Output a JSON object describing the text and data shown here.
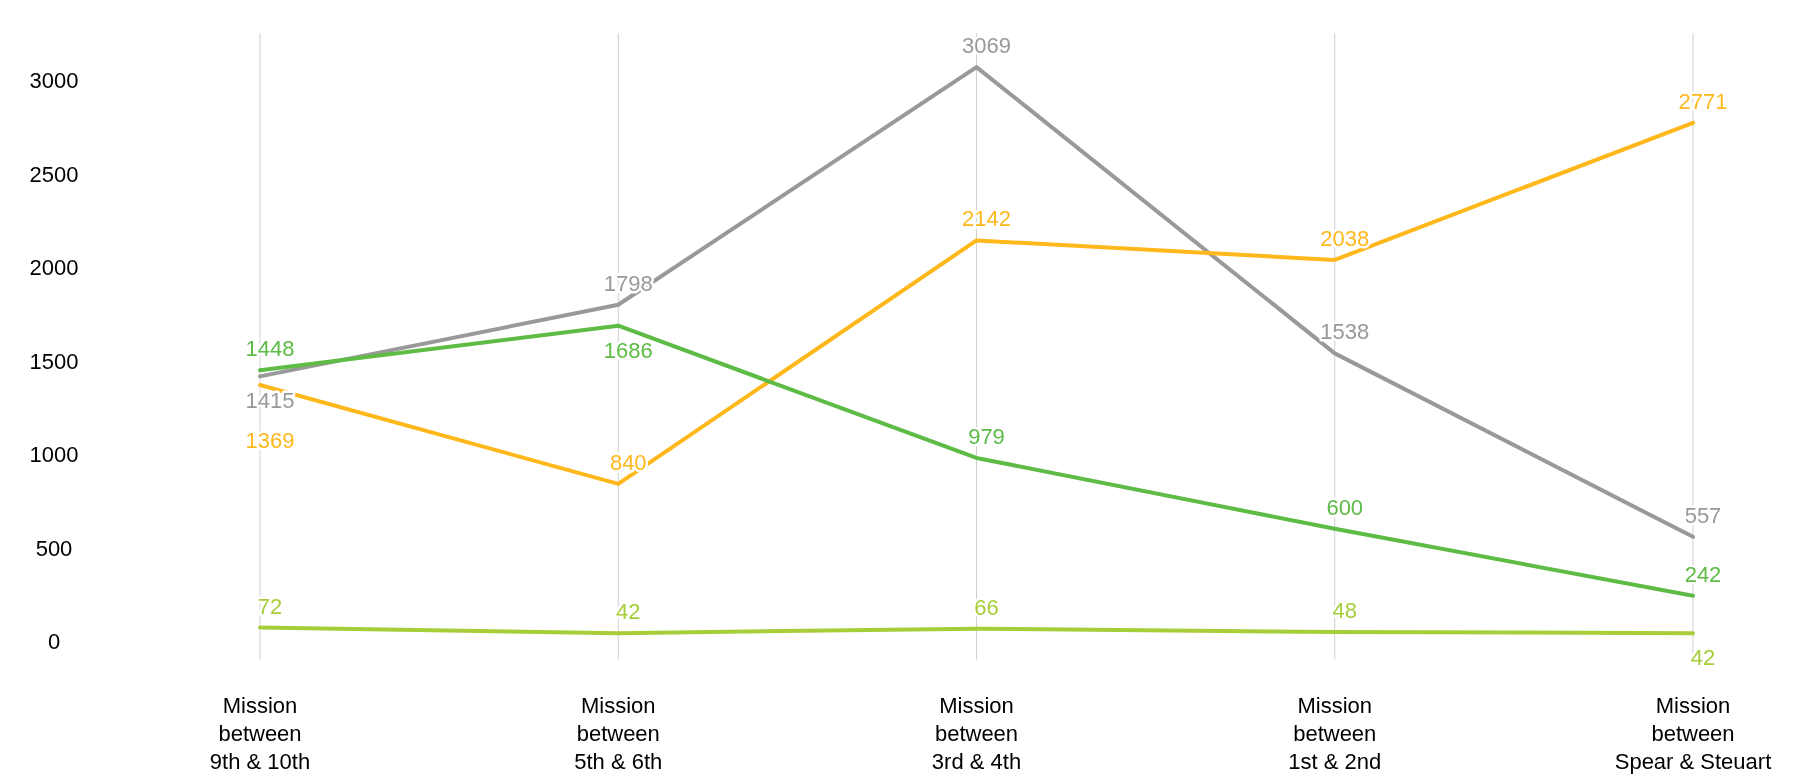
{
  "chart_data": {
    "type": "line",
    "categories": [
      "Mission between 9th & 10th",
      "Mission between 5th & 6th",
      "Mission between 3rd & 4th",
      "Mission between 1st & 2nd",
      "Mission between Spear & Steuart"
    ],
    "series": [
      {
        "color": "#999999",
        "values": [
          1415,
          1798,
          3069,
          1538,
          557
        ]
      },
      {
        "color": "#ffb81c",
        "values": [
          1369,
          840,
          2142,
          2038,
          2771
        ]
      },
      {
        "color": "#5dbb46",
        "values": [
          1448,
          1686,
          979,
          600,
          242
        ]
      },
      {
        "color": "#a6ce39",
        "values": [
          72,
          42,
          66,
          48,
          42
        ]
      }
    ],
    "ylim": [
      -100,
      3250
    ],
    "yticks": [
      0,
      500,
      1000,
      1500,
      2000,
      2500,
      3000
    ],
    "grid": "x",
    "data_labels": true,
    "marker": "none",
    "line_style": "solid"
  }
}
